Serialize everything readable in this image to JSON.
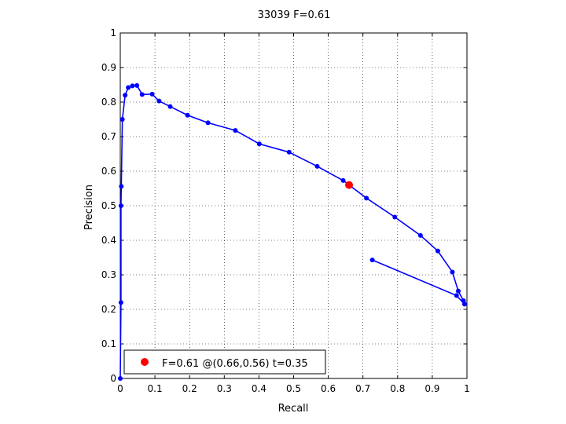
{
  "chart_data": {
    "type": "line",
    "title": "33039 F=0.61",
    "xlabel": "Recall",
    "ylabel": "Precision",
    "xlim": [
      0,
      1
    ],
    "ylim": [
      0,
      1
    ],
    "xticks": [
      "0",
      "0.1",
      "0.2",
      "0.3",
      "0.4",
      "0.5",
      "0.6",
      "0.7",
      "0.8",
      "0.9",
      "1"
    ],
    "yticks": [
      "0",
      "0.1",
      "0.2",
      "0.3",
      "0.4",
      "0.5",
      "0.6",
      "0.7",
      "0.8",
      "0.9",
      "1"
    ],
    "grid": true,
    "legend_position": "bottom-left",
    "series": [
      {
        "color": "#0000ff",
        "marker": "dot",
        "points": [
          [
            0.0,
            0.0
          ],
          [
            0.002,
            0.22
          ],
          [
            0.002,
            0.5
          ],
          [
            0.003,
            0.556
          ],
          [
            0.006,
            0.75
          ],
          [
            0.014,
            0.82
          ],
          [
            0.023,
            0.842
          ],
          [
            0.035,
            0.847
          ],
          [
            0.048,
            0.848
          ],
          [
            0.063,
            0.822
          ],
          [
            0.092,
            0.823
          ],
          [
            0.112,
            0.803
          ],
          [
            0.144,
            0.787
          ],
          [
            0.194,
            0.762
          ],
          [
            0.253,
            0.74
          ],
          [
            0.332,
            0.718
          ],
          [
            0.401,
            0.679
          ],
          [
            0.487,
            0.655
          ],
          [
            0.568,
            0.614
          ],
          [
            0.643,
            0.573
          ],
          [
            0.71,
            0.522
          ],
          [
            0.792,
            0.467
          ],
          [
            0.866,
            0.414
          ],
          [
            0.916,
            0.369
          ],
          [
            0.958,
            0.308
          ],
          [
            0.975,
            0.253
          ],
          [
            0.99,
            0.225
          ],
          [
            0.993,
            0.215
          ],
          [
            0.97,
            0.24
          ],
          [
            0.727,
            0.343
          ]
        ]
      }
    ],
    "best_point": {
      "color": "#ff0000",
      "recall": 0.66,
      "precision": 0.56,
      "legend": "F=0.61 @(0.66,0.56) t=0.35"
    }
  }
}
